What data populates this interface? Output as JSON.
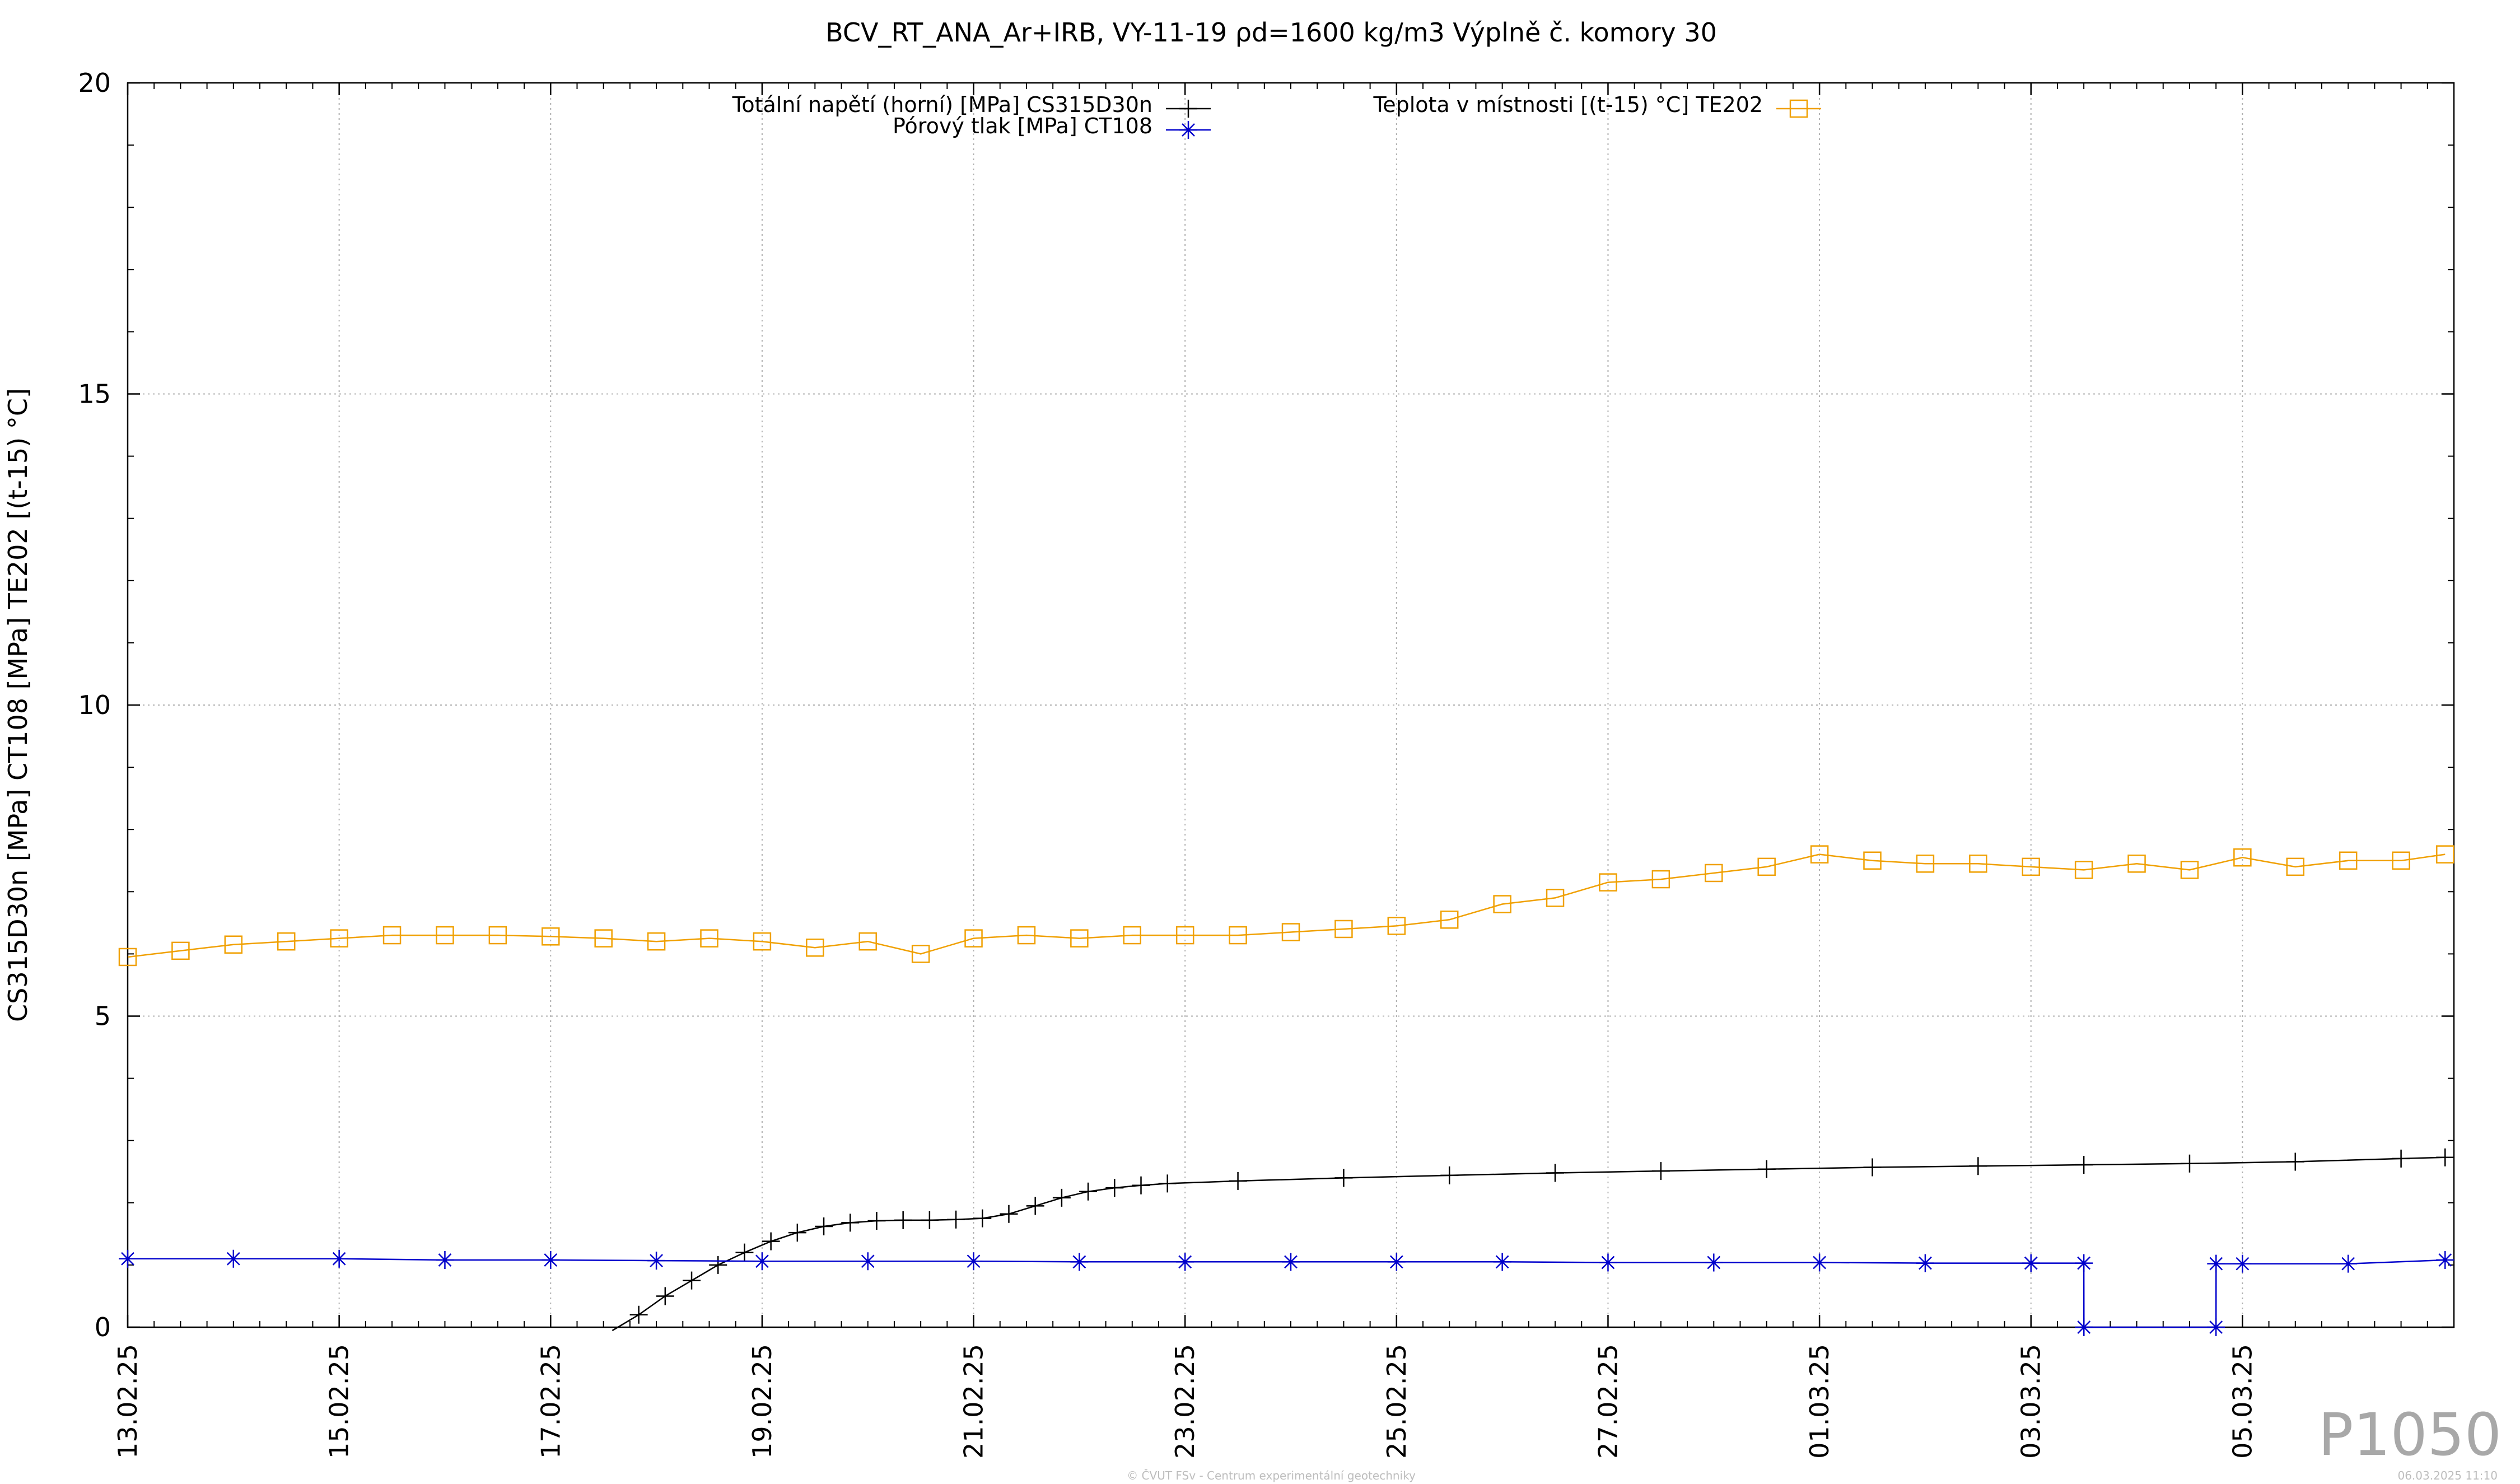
{
  "chart_data": {
    "type": "line",
    "title": "BCV_RT_ANA_Ar+IRB, VY-11-19 ρd=1600 kg/m3 Výplně č. komory 30",
    "ylabel": "CS315D30n [MPa] CT108 [MPa] TE202 [(t-15) °C]",
    "xlabel": "",
    "ylim": [
      0,
      20
    ],
    "yticks": [
      0,
      5,
      10,
      15,
      20
    ],
    "xlim": [
      "2025-02-13",
      "2025-03-07T00:00"
    ],
    "xtick_labels": [
      "13.02.25",
      "15.02.25",
      "17.02.25",
      "19.02.25",
      "21.02.25",
      "23.02.25",
      "25.02.25",
      "27.02.25",
      "01.03.25",
      "03.03.25",
      "05.03.25"
    ],
    "xtick_dates": [
      "2025-02-13",
      "2025-02-15",
      "2025-02-17",
      "2025-02-19",
      "2025-02-21",
      "2025-02-23",
      "2025-02-25",
      "2025-02-27",
      "2025-03-01",
      "2025-03-03",
      "2025-03-05"
    ],
    "grid": true,
    "legend_position": "top",
    "series": [
      {
        "name": "Totální napětí (horní) [MPa] CS315D30n",
        "color": "#000000",
        "marker": "plus",
        "x": [
          "2025-02-17T14:00",
          "2025-02-17T20:00",
          "2025-02-18T02:00",
          "2025-02-18T08:00",
          "2025-02-18T14:00",
          "2025-02-18T20:00",
          "2025-02-19T02:00",
          "2025-02-19T08:00",
          "2025-02-19T14:00",
          "2025-02-19T20:00",
          "2025-02-20T02:00",
          "2025-02-20T08:00",
          "2025-02-20T14:00",
          "2025-02-20T20:00",
          "2025-02-21T02:00",
          "2025-02-21T08:00",
          "2025-02-21T14:00",
          "2025-02-21T20:00",
          "2025-02-22T02:00",
          "2025-02-22T08:00",
          "2025-02-22T14:00",
          "2025-02-22T20:00",
          "2025-02-23T12:00",
          "2025-02-24T12:00",
          "2025-02-25T12:00",
          "2025-02-26T12:00",
          "2025-02-27T12:00",
          "2025-02-28T12:00",
          "2025-03-01T12:00",
          "2025-03-02T12:00",
          "2025-03-03T12:00",
          "2025-03-04T12:00",
          "2025-03-05T12:00",
          "2025-03-06T12:00",
          "2025-03-06T22:00"
        ],
        "y": [
          -0.1,
          0.2,
          0.5,
          0.75,
          1.0,
          1.2,
          1.38,
          1.52,
          1.62,
          1.68,
          1.71,
          1.72,
          1.72,
          1.73,
          1.75,
          1.82,
          1.95,
          2.08,
          2.18,
          2.24,
          2.28,
          2.31,
          2.35,
          2.4,
          2.44,
          2.48,
          2.51,
          2.54,
          2.57,
          2.59,
          2.61,
          2.63,
          2.66,
          2.71,
          2.73
        ]
      },
      {
        "name": "Pórový tlak [MPa] CT108",
        "color": "#0000cc",
        "marker": "star",
        "x": [
          "2025-02-13T00:00",
          "2025-02-14T00:00",
          "2025-02-15T00:00",
          "2025-02-16T00:00",
          "2025-02-17T00:00",
          "2025-02-18T00:00",
          "2025-02-19T00:00",
          "2025-02-20T00:00",
          "2025-02-21T00:00",
          "2025-02-22T00:00",
          "2025-02-23T00:00",
          "2025-02-24T00:00",
          "2025-02-25T00:00",
          "2025-02-26T00:00",
          "2025-02-27T00:00",
          "2025-02-28T00:00",
          "2025-03-01T00:00",
          "2025-03-02T00:00",
          "2025-03-03T00:00",
          "2025-03-03T12:00",
          "2025-03-03T12:01",
          "2025-03-04T18:00",
          "2025-03-04T18:01",
          "2025-03-05T00:00",
          "2025-03-06T00:00",
          "2025-03-06T22:00"
        ],
        "y": [
          1.1,
          1.1,
          1.1,
          1.08,
          1.08,
          1.07,
          1.06,
          1.06,
          1.06,
          1.05,
          1.05,
          1.05,
          1.05,
          1.05,
          1.04,
          1.04,
          1.04,
          1.03,
          1.03,
          1.03,
          0.0,
          0.0,
          1.02,
          1.02,
          1.02,
          1.08
        ]
      },
      {
        "name": "Teplota v místnosti [(t-15) °C] TE202",
        "color": "#f0a000",
        "marker": "square",
        "x": [
          "2025-02-13T00:00",
          "2025-02-13T12:00",
          "2025-02-14T00:00",
          "2025-02-14T12:00",
          "2025-02-15T00:00",
          "2025-02-15T12:00",
          "2025-02-16T00:00",
          "2025-02-16T12:00",
          "2025-02-17T00:00",
          "2025-02-17T12:00",
          "2025-02-18T00:00",
          "2025-02-18T12:00",
          "2025-02-19T00:00",
          "2025-02-19T12:00",
          "2025-02-20T00:00",
          "2025-02-20T12:00",
          "2025-02-21T00:00",
          "2025-02-21T12:00",
          "2025-02-22T00:00",
          "2025-02-22T12:00",
          "2025-02-23T00:00",
          "2025-02-23T12:00",
          "2025-02-24T00:00",
          "2025-02-24T12:00",
          "2025-02-25T00:00",
          "2025-02-25T12:00",
          "2025-02-26T00:00",
          "2025-02-26T12:00",
          "2025-02-27T00:00",
          "2025-02-27T12:00",
          "2025-02-28T00:00",
          "2025-02-28T12:00",
          "2025-03-01T00:00",
          "2025-03-01T12:00",
          "2025-03-02T00:00",
          "2025-03-02T12:00",
          "2025-03-03T00:00",
          "2025-03-03T12:00",
          "2025-03-04T00:00",
          "2025-03-04T12:00",
          "2025-03-05T00:00",
          "2025-03-05T12:00",
          "2025-03-06T00:00",
          "2025-03-06T12:00",
          "2025-03-06T22:00"
        ],
        "y": [
          5.95,
          6.05,
          6.15,
          6.2,
          6.25,
          6.3,
          6.3,
          6.3,
          6.28,
          6.25,
          6.2,
          6.25,
          6.2,
          6.1,
          6.2,
          6.0,
          6.25,
          6.3,
          6.25,
          6.3,
          6.3,
          6.3,
          6.35,
          6.4,
          6.45,
          6.55,
          6.8,
          6.9,
          7.15,
          7.2,
          7.3,
          7.4,
          7.6,
          7.5,
          7.45,
          7.45,
          7.4,
          7.35,
          7.45,
          7.35,
          7.55,
          7.4,
          7.5,
          7.5,
          7.6
        ]
      }
    ]
  },
  "watermark": "P1050",
  "footer_credit": "© ČVUT FSv - Centrum experimentální geotechniky",
  "footer_timestamp": "06.03.2025 11:10"
}
